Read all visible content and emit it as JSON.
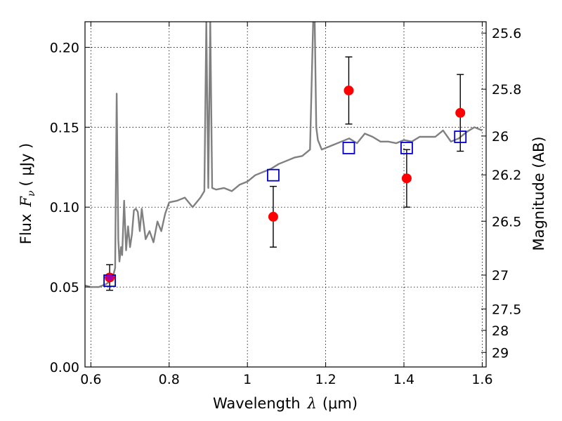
{
  "chart_data": {
    "type": "scatter",
    "xlabel_prefix": "Wavelength",
    "xlabel_symbol": "λ",
    "xlabel_unit": "(μm)",
    "ylabel_prefix": "Flux",
    "ylabel_symbol": "F",
    "ylabel_subscript": "ν",
    "ylabel_unit": "( μJy )",
    "y2label": "Magnitude (AB)",
    "xlim": [
      0.585,
      1.61
    ],
    "ylim": [
      0.0,
      0.216
    ],
    "grid": true,
    "x_ticks": [
      0.6,
      0.8,
      1.0,
      1.2,
      1.4,
      1.6
    ],
    "x_tick_labels": [
      "0.6",
      "0.8",
      "1",
      "1.2",
      "1.4",
      "1.6"
    ],
    "y_ticks": [
      0.0,
      0.05,
      0.1,
      0.15,
      0.2
    ],
    "y_tick_labels": [
      "0.00",
      "0.05",
      "0.10",
      "0.15",
      "0.20"
    ],
    "y2_ticks": [
      {
        "flux": 0.2089,
        "label": "25.6"
      },
      {
        "flux": 0.1738,
        "label": "25.8"
      },
      {
        "flux": 0.1445,
        "label": "26"
      },
      {
        "flux": 0.1202,
        "label": "26.2"
      },
      {
        "flux": 0.0912,
        "label": "26.5"
      },
      {
        "flux": 0.0575,
        "label": "27"
      },
      {
        "flux": 0.0363,
        "label": "27.5"
      },
      {
        "flux": 0.0229,
        "label": "28"
      },
      {
        "flux": 0.0091,
        "label": "29"
      }
    ],
    "series": [
      {
        "kind": "line",
        "color": "#808080",
        "x": [
          0.585,
          0.6,
          0.62,
          0.64,
          0.655,
          0.662,
          0.666,
          0.67,
          0.673,
          0.677,
          0.68,
          0.685,
          0.69,
          0.695,
          0.7,
          0.705,
          0.71,
          0.715,
          0.72,
          0.725,
          0.73,
          0.74,
          0.75,
          0.76,
          0.77,
          0.78,
          0.79,
          0.8,
          0.82,
          0.84,
          0.86,
          0.88,
          0.89,
          0.895,
          0.9,
          0.905,
          0.91,
          0.92,
          0.94,
          0.96,
          0.98,
          1.0,
          1.02,
          1.04,
          1.06,
          1.08,
          1.1,
          1.12,
          1.14,
          1.16,
          1.168,
          1.172,
          1.176,
          1.18,
          1.19,
          1.2,
          1.22,
          1.24,
          1.26,
          1.28,
          1.3,
          1.32,
          1.34,
          1.36,
          1.38,
          1.4,
          1.42,
          1.44,
          1.46,
          1.48,
          1.5,
          1.52,
          1.54,
          1.56,
          1.58,
          1.6
        ],
        "y": [
          0.051,
          0.05,
          0.05,
          0.052,
          0.055,
          0.062,
          0.171,
          0.08,
          0.066,
          0.075,
          0.07,
          0.104,
          0.073,
          0.088,
          0.075,
          0.083,
          0.098,
          0.099,
          0.097,
          0.085,
          0.099,
          0.08,
          0.085,
          0.078,
          0.091,
          0.085,
          0.096,
          0.103,
          0.104,
          0.106,
          0.1,
          0.106,
          0.11,
          0.216,
          0.112,
          0.216,
          0.112,
          0.111,
          0.112,
          0.11,
          0.114,
          0.116,
          0.12,
          0.122,
          0.124,
          0.127,
          0.129,
          0.131,
          0.132,
          0.136,
          0.216,
          0.216,
          0.15,
          0.142,
          0.136,
          0.137,
          0.139,
          0.141,
          0.143,
          0.14,
          0.146,
          0.144,
          0.141,
          0.141,
          0.14,
          0.142,
          0.141,
          0.144,
          0.144,
          0.144,
          0.148,
          0.141,
          0.143,
          0.147,
          0.15,
          0.148
        ]
      },
      {
        "kind": "points-errorbars",
        "color": "#ff0000",
        "x": [
          0.648,
          1.066,
          1.259,
          1.407,
          1.544
        ],
        "y": [
          0.056,
          0.094,
          0.173,
          0.118,
          0.159
        ],
        "yerr": [
          0.008,
          0.019,
          0.021,
          0.018,
          0.024
        ]
      },
      {
        "kind": "open-squares",
        "color": "#0000cc",
        "x": [
          0.648,
          1.066,
          1.259,
          1.407,
          1.544
        ],
        "y": [
          0.054,
          0.12,
          0.137,
          0.137,
          0.144
        ]
      }
    ]
  }
}
